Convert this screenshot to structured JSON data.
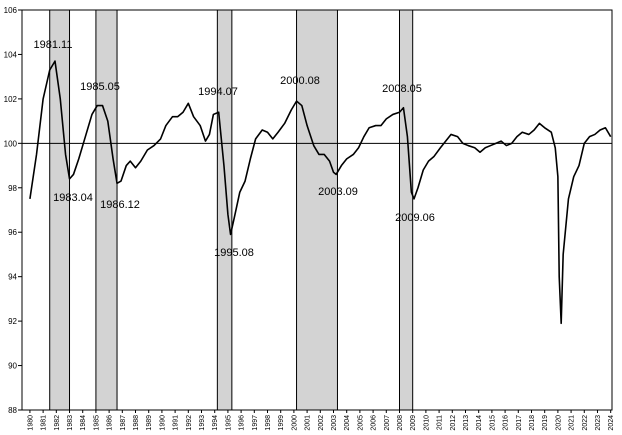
{
  "chart_data": {
    "type": "line",
    "x": [
      1980.0,
      1980.5,
      1981.0,
      1981.5,
      1981.9,
      1982.3,
      1982.7,
      1983.0,
      1983.3,
      1983.7,
      1984.2,
      1984.7,
      1985.1,
      1985.5,
      1985.9,
      1986.3,
      1986.6,
      1986.9,
      1987.3,
      1987.6,
      1988.0,
      1988.4,
      1988.9,
      1989.4,
      1989.9,
      1990.3,
      1990.8,
      1991.2,
      1991.6,
      1992.0,
      1992.4,
      1992.9,
      1993.3,
      1993.6,
      1993.9,
      1994.3,
      1994.7,
      1995.0,
      1995.2,
      1995.5,
      1995.9,
      1996.3,
      1996.7,
      1997.1,
      1997.6,
      1998.0,
      1998.4,
      1998.8,
      1999.3,
      1999.8,
      2000.2,
      2000.6,
      2001.0,
      2001.5,
      2001.9,
      2002.3,
      2002.7,
      2003.0,
      2003.2,
      2003.6,
      2004.0,
      2004.5,
      2004.9,
      2005.3,
      2005.7,
      2006.2,
      2006.6,
      2007.0,
      2007.5,
      2008.0,
      2008.3,
      2008.6,
      2008.9,
      2009.1,
      2009.4,
      2009.8,
      2010.2,
      2010.6,
      2011.1,
      2011.5,
      2011.9,
      2012.4,
      2012.8,
      2013.2,
      2013.7,
      2014.1,
      2014.5,
      2014.9,
      2015.3,
      2015.7,
      2016.1,
      2016.5,
      2016.9,
      2017.3,
      2017.8,
      2018.2,
      2018.6,
      2019.0,
      2019.5,
      2019.8,
      2020.0,
      2020.1,
      2020.25,
      2020.4,
      2020.8,
      2021.2,
      2021.6,
      2022.0,
      2022.4,
      2022.8,
      2023.2,
      2023.6,
      2024.0
    ],
    "series": [
      {
        "color": "#000000",
        "values": [
          97.5,
          99.5,
          102.0,
          103.3,
          103.7,
          102.0,
          99.5,
          98.4,
          98.6,
          99.3,
          100.3,
          101.3,
          101.7,
          101.7,
          101.0,
          99.3,
          98.2,
          98.3,
          99.0,
          99.2,
          98.9,
          99.2,
          99.7,
          99.9,
          100.2,
          100.8,
          101.2,
          101.2,
          101.4,
          101.8,
          101.2,
          100.8,
          100.1,
          100.4,
          101.3,
          101.4,
          99.0,
          96.8,
          95.9,
          96.7,
          97.8,
          98.3,
          99.3,
          100.2,
          100.6,
          100.5,
          100.2,
          100.5,
          100.9,
          101.5,
          101.9,
          101.7,
          100.8,
          99.9,
          99.5,
          99.5,
          99.2,
          98.7,
          98.6,
          99.0,
          99.3,
          99.5,
          99.8,
          100.3,
          100.7,
          100.8,
          100.8,
          101.1,
          101.3,
          101.4,
          101.6,
          100.3,
          97.8,
          97.5,
          98.0,
          98.8,
          99.2,
          99.4,
          99.8,
          100.1,
          100.4,
          100.3,
          100.0,
          99.9,
          99.8,
          99.6,
          99.8,
          99.9,
          100.0,
          100.1,
          99.9,
          100.0,
          100.3,
          100.5,
          100.4,
          100.6,
          100.9,
          100.7,
          100.5,
          99.8,
          98.5,
          94.0,
          91.9,
          95.0,
          97.5,
          98.5,
          99.0,
          100.0,
          100.3,
          100.4,
          100.6,
          100.7,
          100.3
        ]
      }
    ],
    "reference_line": 100,
    "shaded_ranges": [
      [
        1981.5,
        1983.0
      ],
      [
        1985.0,
        1986.6
      ],
      [
        1994.2,
        1995.3
      ],
      [
        2000.2,
        2003.3
      ],
      [
        2008.0,
        2009.0
      ]
    ],
    "shade_color": "#d3d3d3",
    "annotations": [
      "1981.11",
      "1983.04",
      "1985.05",
      "1986.12",
      "1994.07",
      "1995.08",
      "2000.08",
      "2003.09",
      "2008.05",
      "2009.06"
    ],
    "xlim": [
      1979.4,
      2024.1
    ],
    "xticks": [
      1980,
      1981,
      1982,
      1983,
      1984,
      1985,
      1986,
      1987,
      1988,
      1989,
      1990,
      1991,
      1992,
      1993,
      1994,
      1995,
      1996,
      1997,
      1998,
      1999,
      2000,
      2001,
      2002,
      2003,
      2004,
      2005,
      2006,
      2007,
      2008,
      2009,
      2010,
      2011,
      2012,
      2013,
      2014,
      2015,
      2016,
      2017,
      2018,
      2019,
      2020,
      2021,
      2022,
      2023,
      2024
    ],
    "ylim": [
      88,
      106
    ],
    "yticks": [
      88,
      90,
      92,
      94,
      96,
      98,
      100,
      102,
      104,
      106
    ]
  }
}
